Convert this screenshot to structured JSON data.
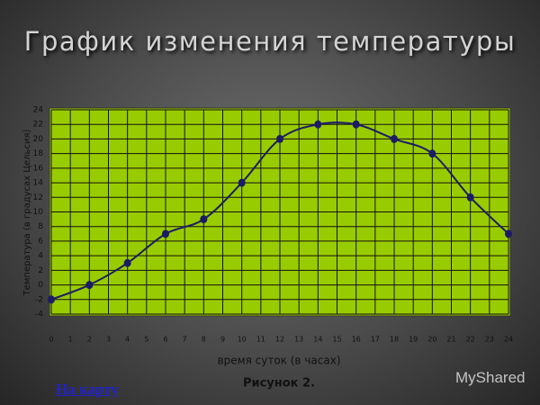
{
  "chart_data": {
    "type": "line",
    "title": "График изменения температуры",
    "y_label": "Температура (в градусах Цельсия)",
    "x_label": "время суток (в часах)",
    "caption": "Рисунок 2.",
    "x": [
      0,
      2,
      4,
      6,
      8,
      10,
      12,
      14,
      16,
      18,
      20,
      22,
      24
    ],
    "values": [
      -2,
      0,
      3,
      7,
      9,
      14,
      20,
      22,
      22,
      20,
      18,
      12,
      7
    ],
    "color": "#1c1c66",
    "plot_color": "#99cc00",
    "grid": true,
    "xlim": [
      0,
      24
    ],
    "xticks": [
      0,
      1,
      2,
      3,
      4,
      5,
      6,
      7,
      8,
      9,
      10,
      11,
      12,
      13,
      14,
      15,
      16,
      17,
      18,
      19,
      20,
      21,
      22,
      23,
      24
    ],
    "ylim": [
      -4,
      24
    ],
    "yticks": [
      -4,
      -2,
      0,
      2,
      4,
      6,
      8,
      10,
      12,
      14,
      16,
      18,
      20,
      22,
      24
    ]
  },
  "link": "На карту",
  "watermark": "MyShared"
}
